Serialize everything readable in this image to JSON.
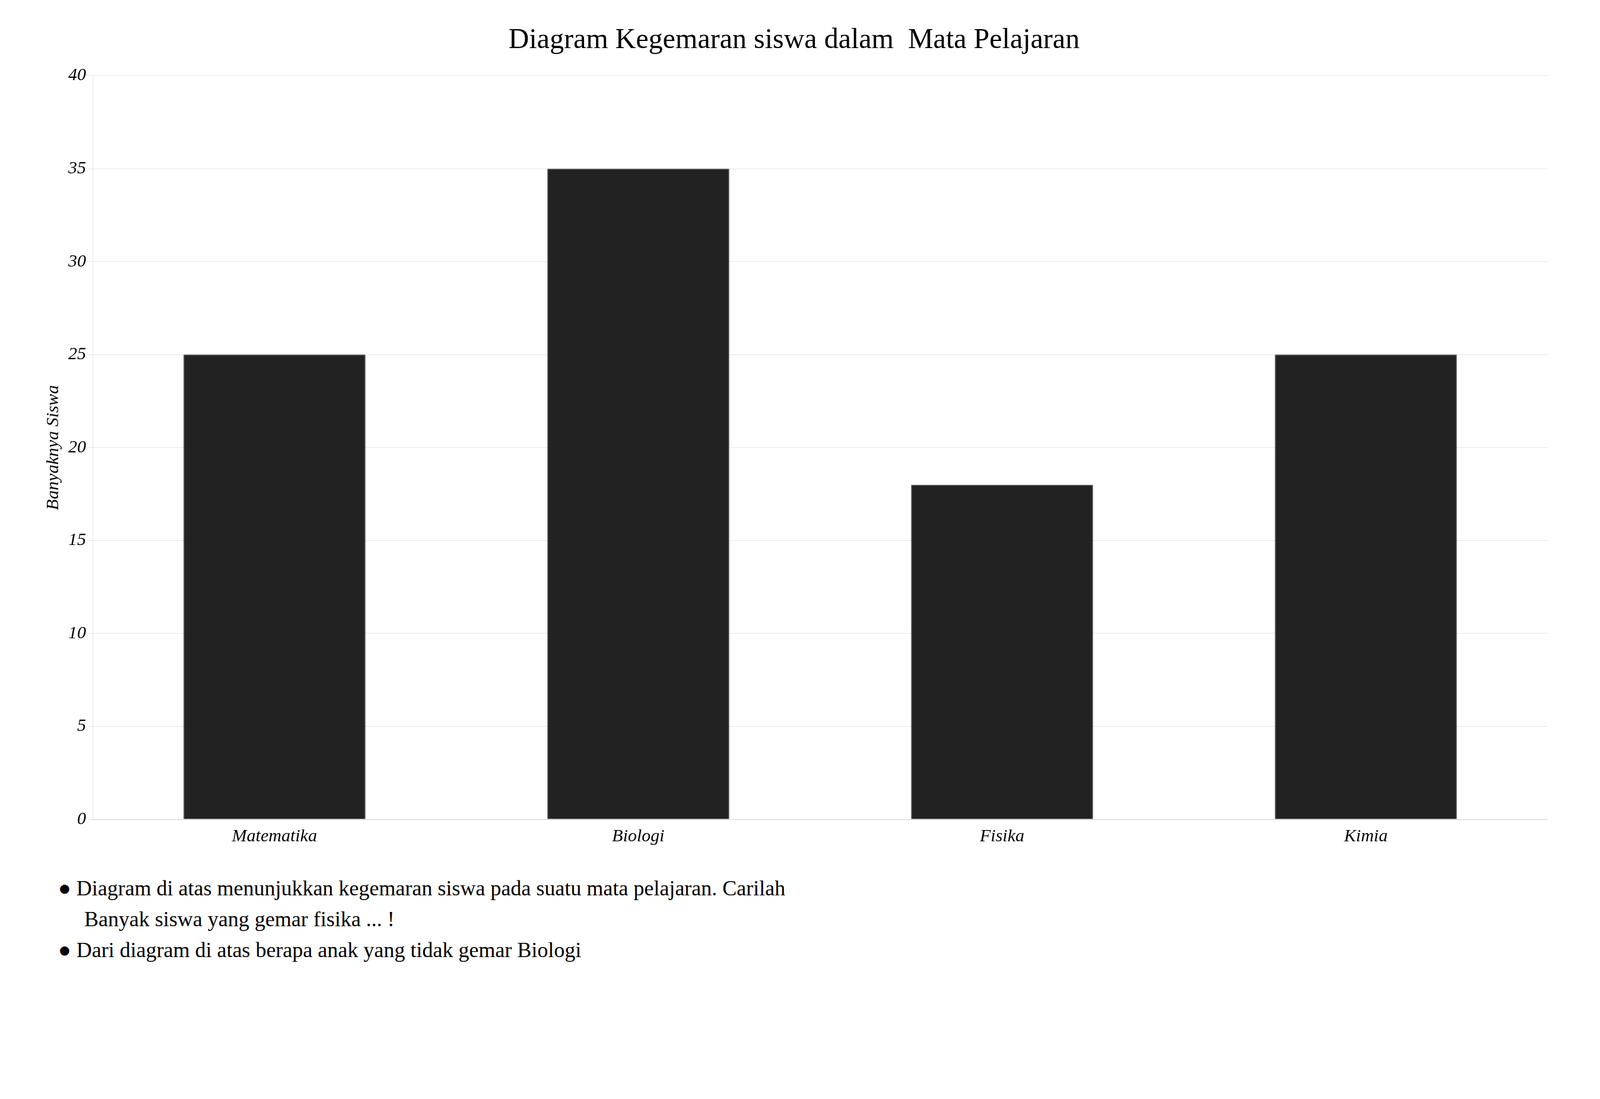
{
  "chart_data": {
    "type": "bar",
    "title": "Diagram Kegemaran siswa dalam  Mata Pelajaran",
    "categories": [
      "Matematika",
      "Biologi",
      "Fisika",
      "Kimia"
    ],
    "values": [
      25,
      35,
      18,
      25
    ],
    "color": "#222222",
    "ylabel": "Banyaknya Siswa",
    "ylim": [
      0,
      40
    ],
    "yticks": [
      0,
      5,
      10,
      15,
      20,
      25,
      30,
      35,
      40
    ],
    "grid": true,
    "annotations": [
      "● Diagram di atas menunjukkan kegemaran siswa pada suatu mata pelajaran. Carilah",
      "Banyak siswa yang gemar fisika ... !",
      "● Dari diagram di atas berapa anak yang tidak gemar Biologi"
    ]
  }
}
